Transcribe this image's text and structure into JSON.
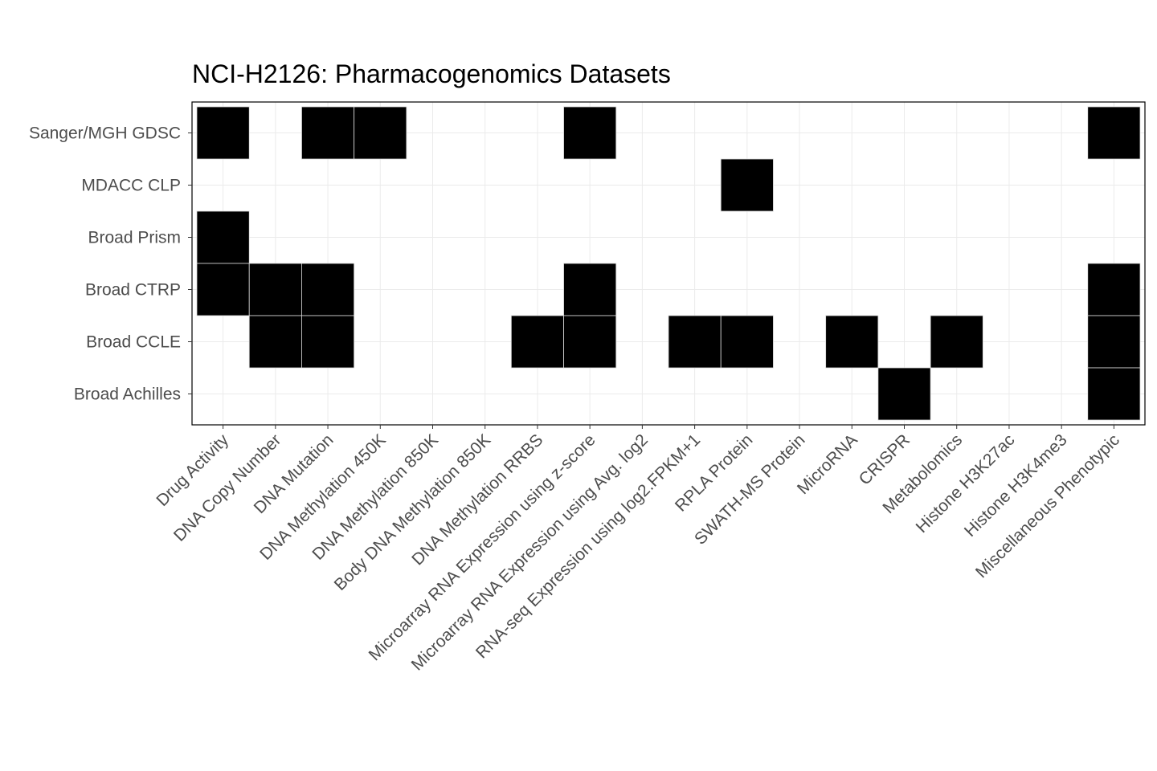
{
  "chart_data": {
    "type": "heatmap",
    "title": "NCI-H2126: Pharmacogenomics Datasets",
    "xlabel": "",
    "ylabel": "",
    "grid": true,
    "legend": "none",
    "x_categories": [
      "Drug Activity",
      "DNA Copy Number",
      "DNA Mutation",
      "DNA Methylation 450K",
      "DNA Methylation 850K",
      "Body DNA Methylation 850K",
      "DNA Methylation RRBS",
      "Microarray RNA Expression using z-score",
      "Microarray RNA Expression using Avg. log2",
      "RNA-seq Expression using log2.FPKM+1",
      "RPLA Protein",
      "SWATH-MS Protein",
      "MicroRNA",
      "CRISPR",
      "Metabolomics",
      "Histone H3K27ac",
      "Histone H3K4me3",
      "Miscellaneous Phenotypic"
    ],
    "y_categories": [
      "Sanger/MGH GDSC",
      "MDACC CLP",
      "Broad Prism",
      "Broad CTRP",
      "Broad CCLE",
      "Broad Achilles"
    ],
    "values": [
      [
        1,
        0,
        1,
        1,
        0,
        0,
        0,
        1,
        0,
        0,
        0,
        0,
        0,
        0,
        0,
        0,
        0,
        1
      ],
      [
        0,
        0,
        0,
        0,
        0,
        0,
        0,
        0,
        0,
        0,
        1,
        0,
        0,
        0,
        0,
        0,
        0,
        0
      ],
      [
        1,
        0,
        0,
        0,
        0,
        0,
        0,
        0,
        0,
        0,
        0,
        0,
        0,
        0,
        0,
        0,
        0,
        0
      ],
      [
        1,
        1,
        1,
        0,
        0,
        0,
        0,
        1,
        0,
        0,
        0,
        0,
        0,
        0,
        0,
        0,
        0,
        1
      ],
      [
        0,
        1,
        1,
        0,
        0,
        0,
        1,
        1,
        0,
        1,
        1,
        0,
        1,
        0,
        1,
        0,
        0,
        1
      ],
      [
        0,
        0,
        0,
        0,
        0,
        0,
        0,
        0,
        0,
        0,
        0,
        0,
        0,
        1,
        0,
        0,
        0,
        1
      ]
    ],
    "colors": {
      "present": "#000000",
      "absent": "#ffffff",
      "cell_border": "#d9d9d9",
      "grid": "#ebebeb",
      "text": "#4d4d4d"
    }
  }
}
